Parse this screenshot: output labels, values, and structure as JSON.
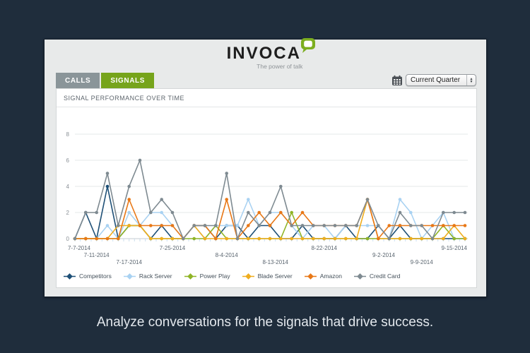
{
  "header": {
    "logo_text": "INVOCA",
    "logo_reg": "®",
    "tagline": "The power of talk"
  },
  "tabs": [
    {
      "label": "CALLS",
      "active": false
    },
    {
      "label": "SIGNALS",
      "active": true
    }
  ],
  "filter": {
    "selected": "Current Quarter",
    "stepper_up": "▲",
    "stepper_down": "▼"
  },
  "panel": {
    "title": "SIGNAL PERFORMANCE OVER TIME"
  },
  "caption": "Analyze conversations for the signals that drive success.",
  "colors": {
    "background": "#1F2D3C",
    "card": "#E8EAEA",
    "tab_gray": "#8A9599",
    "brand_green": "#76A41B",
    "competitors": "#1D4F76",
    "rack_server": "#A9D2F2",
    "power_play": "#8FB426",
    "blade_server": "#EFAD1E",
    "amazon": "#E87817",
    "credit_card": "#7E8A91"
  },
  "chart_data": {
    "type": "line",
    "title": "SIGNAL PERFORMANCE OVER TIME",
    "xlabel": "",
    "ylabel": "",
    "y_ticks": [
      0,
      2,
      4,
      6,
      8
    ],
    "ylim": [
      0,
      8
    ],
    "grid": true,
    "legend_position": "bottom",
    "x_start": "7-7-2014",
    "x_step_days": 2,
    "num_points": 37,
    "total_days": 72,
    "x_tick_labels": [
      {
        "label": "7-7-2014",
        "day": 0,
        "row": 0
      },
      {
        "label": "7-11-2014",
        "day": 4,
        "row": 1
      },
      {
        "label": "7-17-2014",
        "day": 10,
        "row": 2
      },
      {
        "label": "7-25-2014",
        "day": 18,
        "row": 0
      },
      {
        "label": "8-4-2014",
        "day": 28,
        "row": 1
      },
      {
        "label": "8-13-2014",
        "day": 37,
        "row": 2
      },
      {
        "label": "8-22-2014",
        "day": 46,
        "row": 0
      },
      {
        "label": "9-2-2014",
        "day": 57,
        "row": 1
      },
      {
        "label": "9-9-2014",
        "day": 64,
        "row": 2
      },
      {
        "label": "9-15-2014",
        "day": 70,
        "row": 0
      }
    ],
    "series": [
      {
        "name": "Competitors",
        "color": "#1D4F76",
        "values": [
          0,
          2,
          0,
          4,
          0,
          1,
          1,
          0,
          1,
          0,
          0,
          1,
          1,
          0,
          1,
          1,
          0,
          1,
          1,
          0,
          0,
          1,
          0,
          0,
          0,
          1,
          0,
          0,
          1,
          0,
          1,
          0,
          0,
          0,
          0,
          0,
          0
        ]
      },
      {
        "name": "Rack Server",
        "color": "#A9D2F2",
        "values": [
          0,
          0,
          0,
          1,
          0,
          2,
          1,
          2,
          2,
          1,
          0,
          1,
          0,
          1,
          1,
          1,
          3,
          1,
          2,
          2,
          1,
          0,
          1,
          1,
          0,
          1,
          1,
          1,
          1,
          0,
          3,
          2,
          0,
          1,
          2,
          0,
          0
        ]
      },
      {
        "name": "Power Play",
        "color": "#8FB426",
        "values": [
          0,
          0,
          0,
          0,
          0,
          1,
          1,
          0,
          0,
          0,
          0,
          0,
          0,
          1,
          0,
          0,
          0,
          0,
          0,
          0,
          2,
          0,
          0,
          0,
          0,
          0,
          0,
          0,
          0,
          0,
          0,
          0,
          0,
          0,
          1,
          0,
          0
        ]
      },
      {
        "name": "Blade Server",
        "color": "#EFAD1E",
        "values": [
          0,
          0,
          0,
          0,
          1,
          1,
          1,
          0,
          0,
          0,
          0,
          1,
          0,
          0,
          0,
          0,
          0,
          0,
          0,
          0,
          0,
          0,
          0,
          0,
          0,
          0,
          0,
          3,
          0,
          0,
          0,
          0,
          0,
          0,
          0,
          1,
          0
        ]
      },
      {
        "name": "Amazon",
        "color": "#E87817",
        "values": [
          0,
          0,
          0,
          0,
          0,
          3,
          1,
          1,
          1,
          1,
          0,
          1,
          1,
          0,
          3,
          0,
          1,
          2,
          1,
          2,
          1,
          2,
          1,
          1,
          1,
          1,
          1,
          3,
          0,
          1,
          1,
          1,
          1,
          1,
          1,
          1,
          1
        ]
      },
      {
        "name": "Credit Card",
        "color": "#7E8A91",
        "values": [
          0,
          2,
          2,
          5,
          1,
          4,
          6,
          2,
          3,
          2,
          0,
          1,
          1,
          1,
          5,
          0,
          2,
          1,
          2,
          4,
          1,
          1,
          1,
          1,
          1,
          1,
          1,
          3,
          1,
          0,
          2,
          1,
          1,
          0,
          2,
          2,
          2
        ]
      }
    ]
  }
}
